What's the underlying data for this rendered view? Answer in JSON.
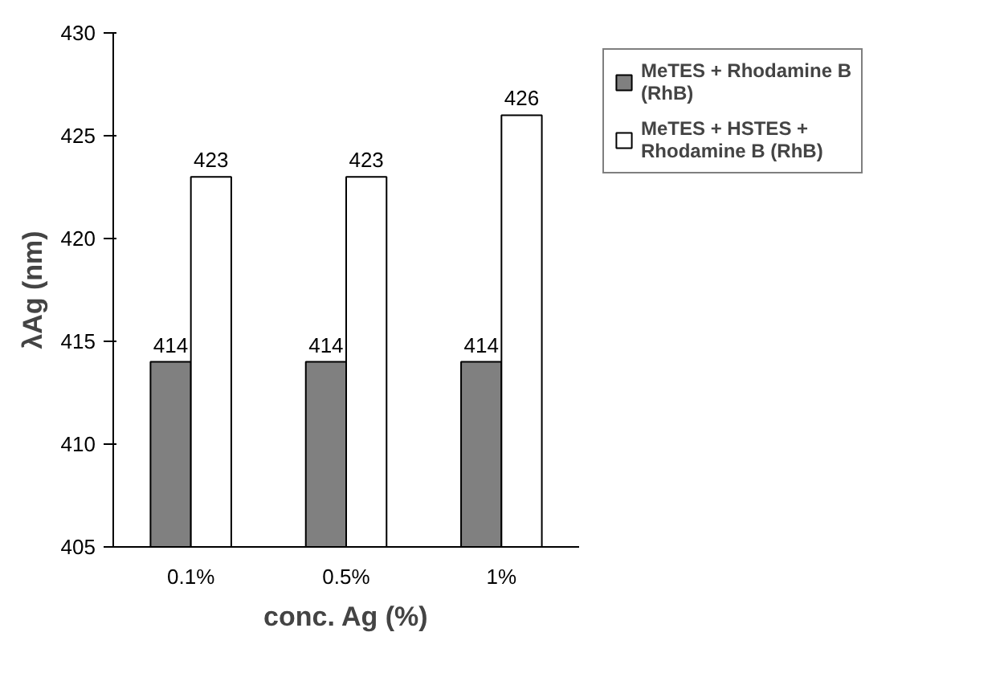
{
  "chart_data": {
    "type": "bar",
    "categories": [
      "0.1%",
      "0.5%",
      "1%"
    ],
    "series": [
      {
        "name": "MeTES + Rhodamine B (RhB)",
        "color": "#808080",
        "values": [
          414,
          414,
          414
        ]
      },
      {
        "name": "MeTES + HSTES + Rhodamine B (RhB)",
        "color": "#ffffff",
        "values": [
          423,
          423,
          426
        ]
      }
    ],
    "xlabel": "conc. Ag (%)",
    "ylabel": "λAg (nm)",
    "ylim": [
      405,
      430
    ],
    "yticks": [
      405,
      410,
      415,
      420,
      425,
      430
    ],
    "data_labels": true,
    "grid": false,
    "legend": "top right"
  }
}
